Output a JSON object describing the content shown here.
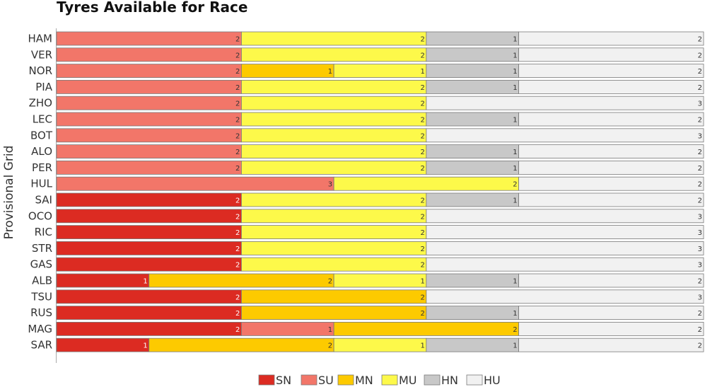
{
  "chart_data": {
    "type": "bar",
    "orientation": "horizontal",
    "stacked": true,
    "title": "Tyres Available for Race",
    "ylabel": "Provisional Grid",
    "xlabel": "",
    "categories": [
      "HAM",
      "VER",
      "NOR",
      "PIA",
      "ZHO",
      "LEC",
      "BOT",
      "ALO",
      "PER",
      "HUL",
      "SAI",
      "OCO",
      "RIC",
      "STR",
      "GAS",
      "ALB",
      "TSU",
      "RUS",
      "MAG",
      "SAR"
    ],
    "series": [
      {
        "name": "SN",
        "color": "#dc2b22",
        "values": [
          0,
          0,
          0,
          0,
          0,
          0,
          0,
          0,
          0,
          0,
          2,
          2,
          2,
          2,
          2,
          1,
          2,
          2,
          2,
          1
        ]
      },
      {
        "name": "SU",
        "color": "#f27669",
        "values": [
          2,
          2,
          2,
          2,
          2,
          2,
          2,
          2,
          2,
          3,
          0,
          0,
          0,
          0,
          0,
          0,
          0,
          0,
          1,
          0
        ]
      },
      {
        "name": "MN",
        "color": "#fdca00",
        "values": [
          0,
          0,
          1,
          0,
          0,
          0,
          0,
          0,
          0,
          0,
          0,
          0,
          0,
          0,
          0,
          2,
          2,
          2,
          2,
          2
        ]
      },
      {
        "name": "MU",
        "color": "#fdf94a",
        "values": [
          2,
          2,
          1,
          2,
          2,
          2,
          2,
          2,
          2,
          2,
          2,
          2,
          2,
          2,
          2,
          1,
          0,
          0,
          0,
          1
        ]
      },
      {
        "name": "HN",
        "color": "#c8c8c8",
        "values": [
          1,
          1,
          1,
          1,
          0,
          1,
          0,
          1,
          1,
          0,
          1,
          0,
          0,
          0,
          0,
          1,
          0,
          1,
          0,
          1
        ]
      },
      {
        "name": "HU",
        "color": "#f1f1f1",
        "values": [
          2,
          2,
          2,
          2,
          3,
          2,
          3,
          2,
          2,
          2,
          2,
          3,
          3,
          3,
          3,
          2,
          3,
          2,
          2,
          2
        ]
      }
    ],
    "xlim": [
      0,
      7
    ],
    "legend_position": "bottom",
    "grid": false
  }
}
